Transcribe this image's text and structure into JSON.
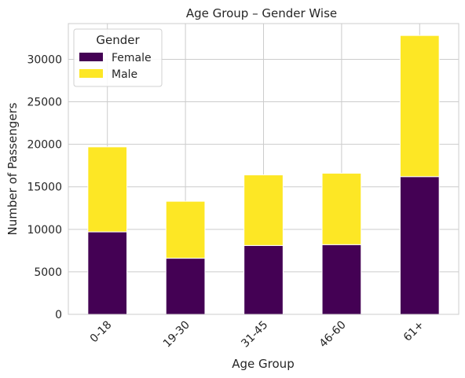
{
  "chart_data": {
    "type": "bar",
    "stacked": true,
    "title": "Age Group – Gender Wise",
    "xlabel": "Age Group",
    "ylabel": "Number of Passengers",
    "categories": [
      "0-18",
      "19-30",
      "31-45",
      "46-60",
      "61+"
    ],
    "series": [
      {
        "name": "Female",
        "color": "#440154",
        "values": [
          9700,
          6600,
          8100,
          8200,
          16200
        ]
      },
      {
        "name": "Male",
        "color": "#fde725",
        "values": [
          10000,
          6700,
          8300,
          8400,
          16600
        ]
      }
    ],
    "ylim": [
      0,
      34200
    ],
    "yticks": [
      0,
      5000,
      10000,
      15000,
      20000,
      25000,
      30000
    ],
    "grid": true,
    "legend": {
      "title": "Gender",
      "position": "top-left"
    }
  }
}
